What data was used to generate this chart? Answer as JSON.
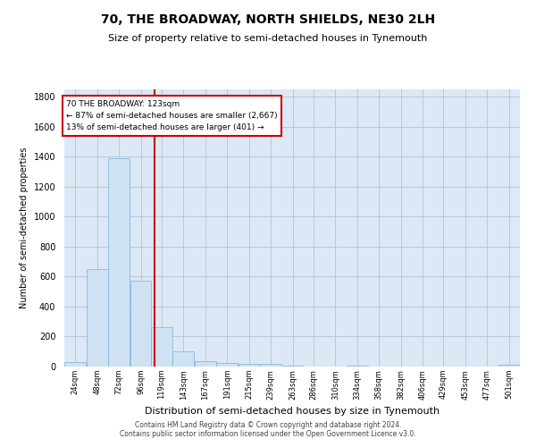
{
  "title": "70, THE BROADWAY, NORTH SHIELDS, NE30 2LH",
  "subtitle": "Size of property relative to semi-detached houses in Tynemouth",
  "xlabel": "Distribution of semi-detached houses by size in Tynemouth",
  "ylabel": "Number of semi-detached properties",
  "property_size": 123,
  "property_label": "70 THE BROADWAY: 123sqm",
  "annotation_line": "← 87% of semi-detached houses are smaller (2,667)",
  "annotation_line2": "13% of semi-detached houses are larger (401) →",
  "footer_line1": "Contains HM Land Registry data © Crown copyright and database right 2024.",
  "footer_line2": "Contains public sector information licensed under the Open Government Licence v3.0.",
  "bar_color": "#cfe2f3",
  "bar_edge_color": "#7bafd4",
  "marker_line_color": "#cc0000",
  "annotation_box_color": "#ffffff",
  "annotation_box_edge": "#cc0000",
  "background_color": "#ffffff",
  "plot_bg_color": "#dce8f5",
  "grid_color": "#b8c8dc",
  "bins": [
    24,
    48,
    72,
    96,
    119,
    143,
    167,
    191,
    215,
    239,
    263,
    286,
    310,
    334,
    358,
    382,
    406,
    429,
    453,
    477,
    501
  ],
  "bin_labels": [
    "24sqm",
    "48sqm",
    "72sqm",
    "96sqm",
    "119sqm",
    "143sqm",
    "167sqm",
    "191sqm",
    "215sqm",
    "239sqm",
    "263sqm",
    "286sqm",
    "310sqm",
    "334sqm",
    "358sqm",
    "382sqm",
    "406sqm",
    "429sqm",
    "453sqm",
    "477sqm",
    "501sqm"
  ],
  "counts": [
    30,
    650,
    1390,
    570,
    265,
    100,
    35,
    25,
    20,
    20,
    5,
    0,
    0,
    5,
    0,
    0,
    0,
    0,
    0,
    0,
    10
  ],
  "ylim": [
    0,
    1850
  ],
  "yticks": [
    0,
    200,
    400,
    600,
    800,
    1000,
    1200,
    1400,
    1600,
    1800
  ],
  "title_fontsize": 10,
  "subtitle_fontsize": 8,
  "xlabel_fontsize": 8,
  "ylabel_fontsize": 7,
  "xtick_fontsize": 6,
  "ytick_fontsize": 7,
  "footer_fontsize": 5.5
}
